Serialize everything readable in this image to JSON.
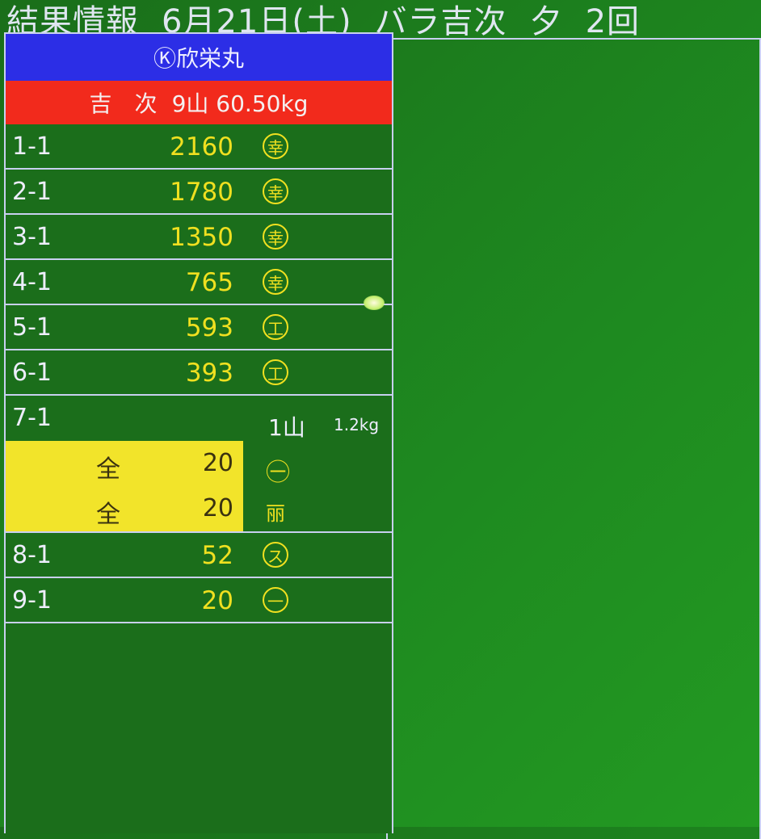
{
  "header": {
    "title": "結果情報",
    "date": "6月21日(土)",
    "category": "バラ吉次",
    "session": "夕",
    "round": "2回"
  },
  "boat": {
    "name": "Ⓚ欣栄丸"
  },
  "lot": {
    "fish": "吉　次",
    "count": "9山",
    "weight": "60.50kg"
  },
  "rows": [
    {
      "no": "1-1",
      "price": "2160",
      "mark": "幸"
    },
    {
      "no": "2-1",
      "price": "1780",
      "mark": "幸"
    },
    {
      "no": "3-1",
      "price": "1350",
      "mark": "幸"
    },
    {
      "no": "4-1",
      "price": "765",
      "mark": "幸"
    },
    {
      "no": "5-1",
      "price": "593",
      "mark": "工"
    },
    {
      "no": "6-1",
      "price": "393",
      "mark": "工"
    }
  ],
  "row7": {
    "no": "7-1",
    "qty": "1山",
    "weight": "1.2kg",
    "subs": [
      {
        "label": "全",
        "price": "20",
        "mark": "㊀"
      },
      {
        "label": "全",
        "price": "20",
        "mark": "丽"
      }
    ]
  },
  "rows2": [
    {
      "no": "8-1",
      "price": "52",
      "mark": "ス"
    },
    {
      "no": "9-1",
      "price": "20",
      "mark": "一"
    }
  ],
  "colors": {
    "background": "#1c7a1c",
    "boat_bar": "#2c2ee6",
    "lot_bar": "#f22a1c",
    "highlight": "#f2e42a",
    "price": "#f0e020"
  }
}
